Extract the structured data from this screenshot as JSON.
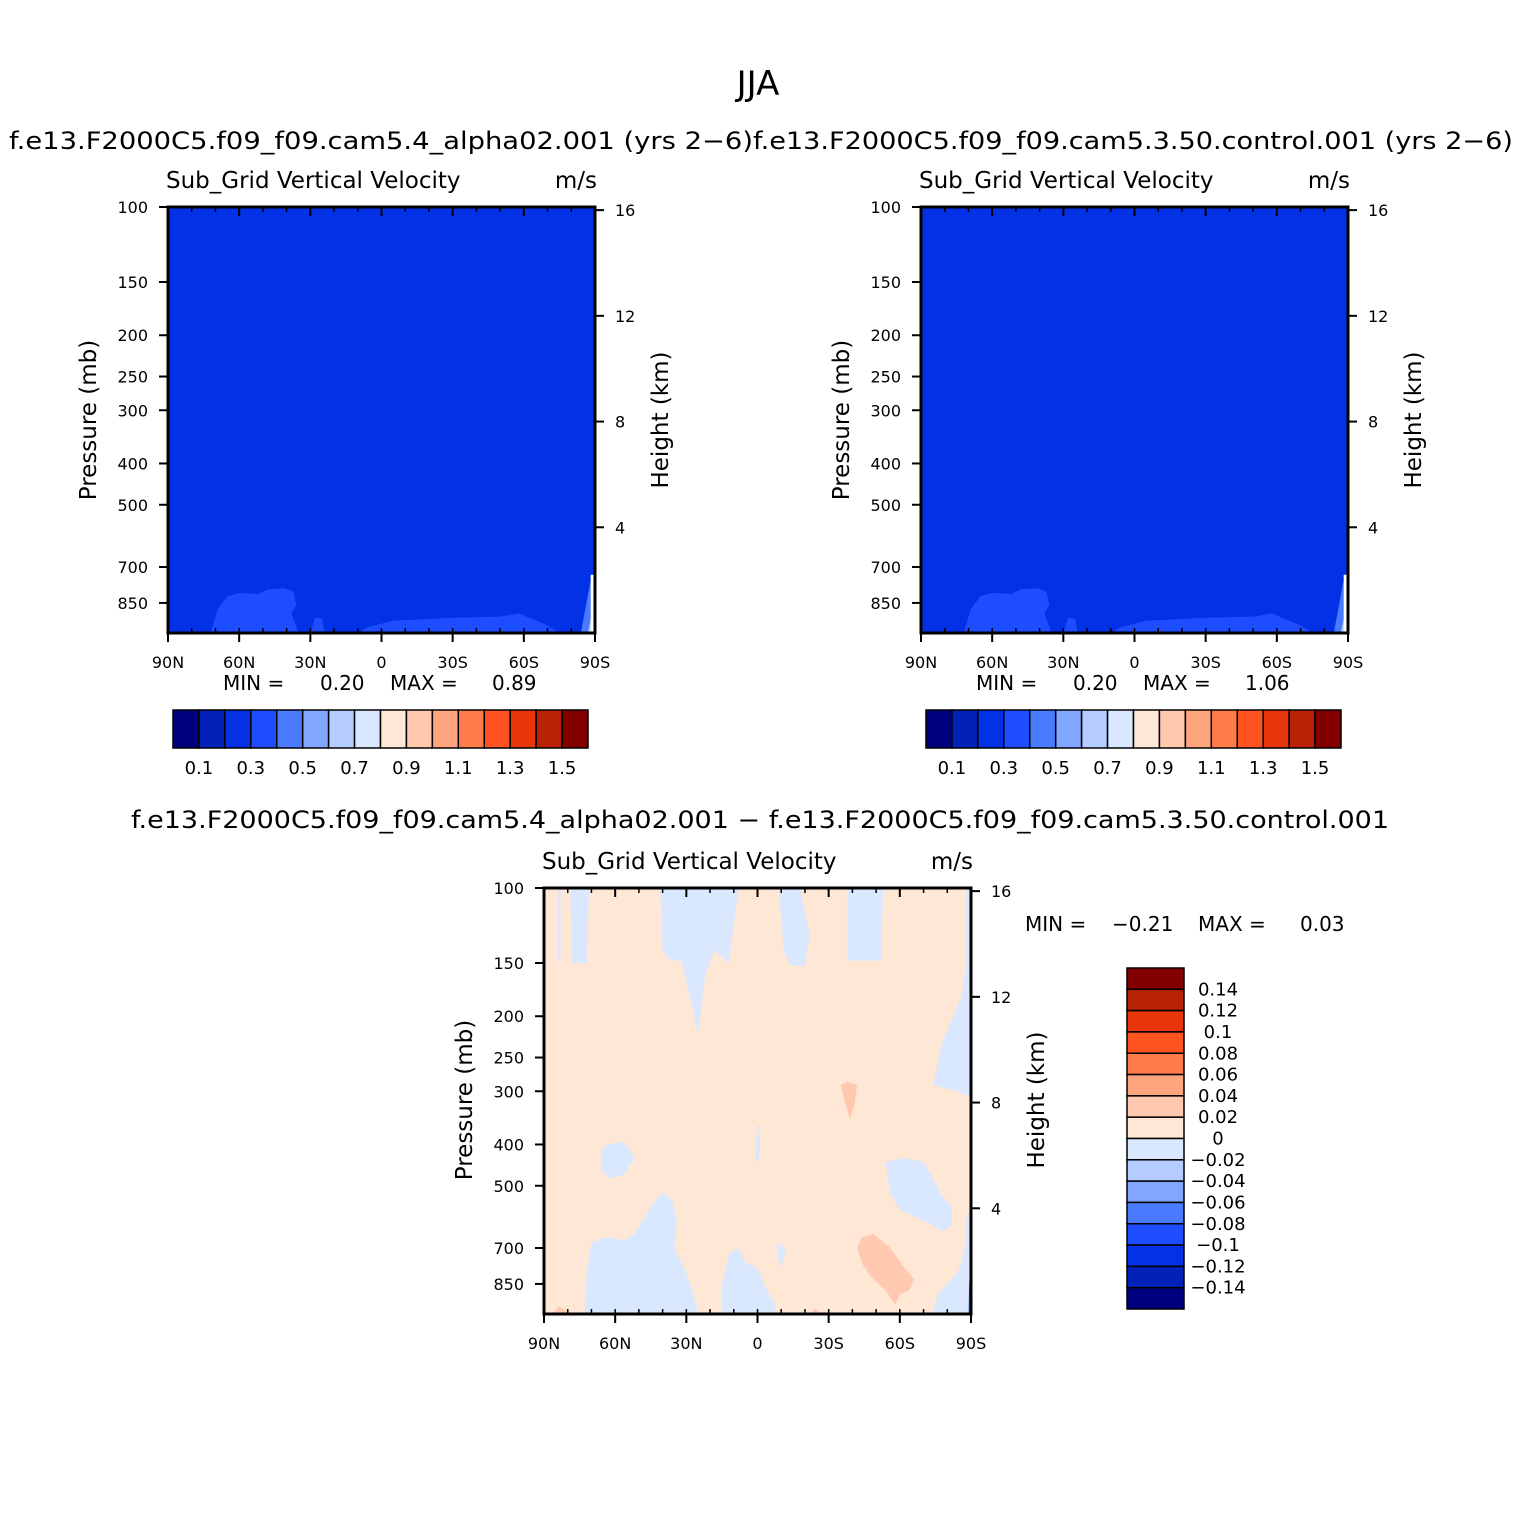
{
  "figure": {
    "season": "JJA",
    "title_left": "f.e13.F2000C5.f09_f09.cam5.4_alpha02.001  (yrs  2−6)",
    "title_right": "f.e13.F2000C5.f09_f09.cam5.3.50.control.001  (yrs  2−6)",
    "title_diff": "f.e13.F2000C5.f09_f09.cam5.4_alpha02.001  −  f.e13.F2000C5.f09_f09.cam5.3.50.control.001"
  },
  "chart_data": [
    {
      "id": "panel-alpha02",
      "type": "heatmap",
      "variable": "Sub_Grid  Vertical  Velocity",
      "units": "m/s",
      "xlabel": "",
      "ylabel": "Pressure  (mb)",
      "ylabel_right": "Height  (km)",
      "x_ticks": [
        "90N",
        "60N",
        "30N",
        "0",
        "30S",
        "60S",
        "90S"
      ],
      "y_ticks": [
        100,
        150,
        200,
        250,
        300,
        400,
        500,
        700,
        850
      ],
      "y_right_ticks": [
        4,
        8,
        12,
        16
      ],
      "ylim": [
        100,
        1000
      ],
      "scale": "log-pressure",
      "min_label": "MIN  =",
      "min_value": "0.20",
      "max_label": "MAX  =",
      "max_value": "0.89",
      "field": {
        "dominant_level": 0.2,
        "lower_tropospheric_level": 0.4
      },
      "colorbar": {
        "labels": [
          "0.1",
          "0.3",
          "0.5",
          "0.7",
          "0.9",
          "1.1",
          "1.3",
          "1.5"
        ],
        "colors": [
          "#00007f",
          "#0121b9",
          "#0332e6",
          "#1e4cff",
          "#4a7bff",
          "#80a6ff",
          "#b4ccff",
          "#d9e8ff",
          "#ffe7d6",
          "#ffc9b0",
          "#ffa57d",
          "#ff7c4a",
          "#ff5320",
          "#e8360a",
          "#b82306",
          "#840000"
        ]
      }
    },
    {
      "id": "panel-control",
      "type": "heatmap",
      "variable": "Sub_Grid  Vertical  Velocity",
      "units": "m/s",
      "xlabel": "",
      "ylabel": "Pressure  (mb)",
      "ylabel_right": "Height  (km)",
      "x_ticks": [
        "90N",
        "60N",
        "30N",
        "0",
        "30S",
        "60S",
        "90S"
      ],
      "y_ticks": [
        100,
        150,
        200,
        250,
        300,
        400,
        500,
        700,
        850
      ],
      "y_right_ticks": [
        4,
        8,
        12,
        16
      ],
      "ylim": [
        100,
        1000
      ],
      "scale": "log-pressure",
      "min_label": "MIN  =",
      "min_value": "0.20",
      "max_label": "MAX  =",
      "max_value": "1.06",
      "field": {
        "dominant_level": 0.2,
        "lower_tropospheric_level": 0.4
      },
      "colorbar": {
        "labels": [
          "0.1",
          "0.3",
          "0.5",
          "0.7",
          "0.9",
          "1.1",
          "1.3",
          "1.5"
        ],
        "colors": [
          "#00007f",
          "#0121b9",
          "#0332e6",
          "#1e4cff",
          "#4a7bff",
          "#80a6ff",
          "#b4ccff",
          "#d9e8ff",
          "#ffe7d6",
          "#ffc9b0",
          "#ffa57d",
          "#ff7c4a",
          "#ff5320",
          "#e8360a",
          "#b82306",
          "#840000"
        ]
      }
    },
    {
      "id": "panel-diff",
      "type": "heatmap",
      "variable": "Sub_Grid  Vertical  Velocity",
      "units": "m/s",
      "xlabel": "",
      "ylabel": "Pressure  (mb)",
      "ylabel_right": "Height  (km)",
      "x_ticks": [
        "90N",
        "60N",
        "30N",
        "0",
        "30S",
        "60S",
        "90S"
      ],
      "y_ticks": [
        100,
        150,
        200,
        250,
        300,
        400,
        500,
        700,
        850
      ],
      "y_right_ticks": [
        4,
        8,
        12,
        16
      ],
      "ylim": [
        100,
        1000
      ],
      "scale": "log-pressure",
      "min_label": "MIN  =",
      "min_value": "−0.21",
      "max_label": "MAX  =",
      "max_value": "0.03",
      "field": {
        "dominant_level": 0.01,
        "negative_patch_level": -0.01,
        "positive_patch_level": 0.03
      },
      "colorbar": {
        "labels": [
          "0.14",
          "0.12",
          "0.1",
          "0.08",
          "0.06",
          "0.04",
          "0.02",
          "0",
          "−0.02",
          "−0.04",
          "−0.06",
          "−0.08",
          "−0.1",
          "−0.12",
          "−0.14"
        ],
        "colors": [
          "#840000",
          "#b82306",
          "#e8360a",
          "#ff5320",
          "#ff7c4a",
          "#ffa57d",
          "#ffc9b0",
          "#ffe7d6",
          "#d9e8ff",
          "#b4ccff",
          "#80a6ff",
          "#4a7bff",
          "#1e4cff",
          "#0332e6",
          "#0121b9",
          "#00007f"
        ]
      }
    }
  ]
}
